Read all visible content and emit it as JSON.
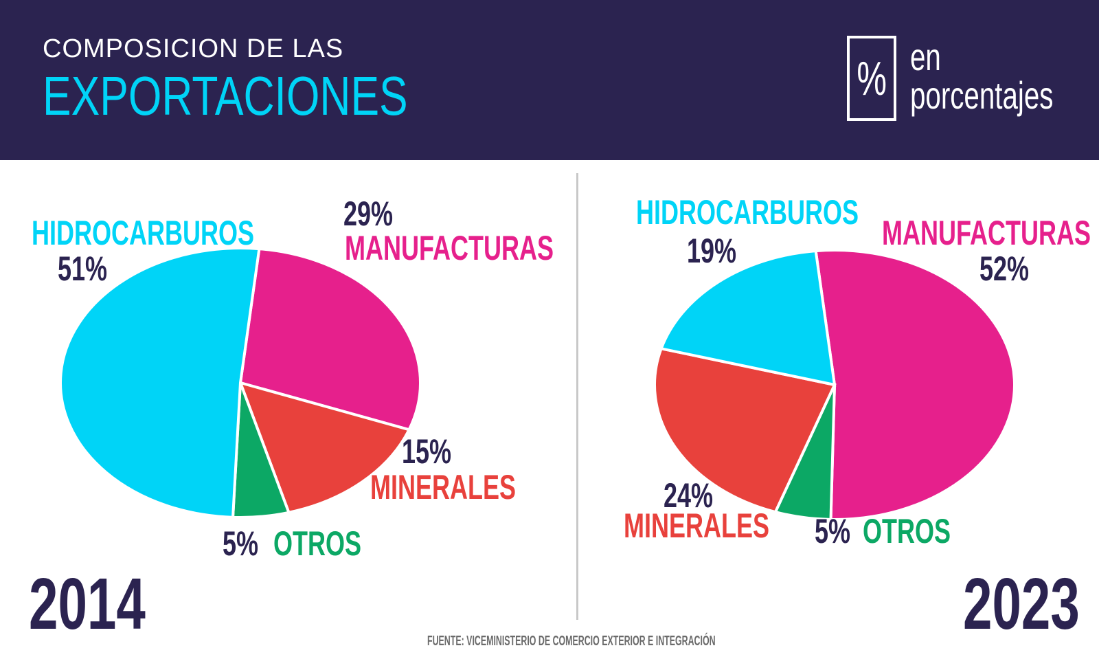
{
  "header": {
    "subtitle": "COMPOSICION DE LAS",
    "title": "EXPORTACIONES",
    "percent_symbol": "%",
    "percent_line1": "en",
    "percent_line2": "porcentajes"
  },
  "colors": {
    "background_header": "#2b2350",
    "hidrocarburos": "#00d4f7",
    "manufacturas": "#e6208c",
    "minerales": "#e8413c",
    "otros": "#0ca865",
    "dark_text": "#2b2350"
  },
  "chart_data": [
    {
      "type": "pie",
      "title": "2014",
      "categories": [
        "HIDROCARBUROS",
        "MANUFACTURAS",
        "MINERALES",
        "OTROS"
      ],
      "values": [
        51,
        29,
        15,
        5
      ],
      "labels": [
        "51%",
        "29%",
        "15%",
        "5%"
      ]
    },
    {
      "type": "pie",
      "title": "2023",
      "categories": [
        "HIDROCARBUROS",
        "MANUFACTURAS",
        "MINERALES",
        "OTROS"
      ],
      "values": [
        19,
        52,
        24,
        5
      ],
      "labels": [
        "19%",
        "52%",
        "24%",
        "5%"
      ]
    }
  ],
  "source": "FUENTE: VICEMINISTERIO DE COMERCIO EXTERIOR E INTEGRACIÓN"
}
